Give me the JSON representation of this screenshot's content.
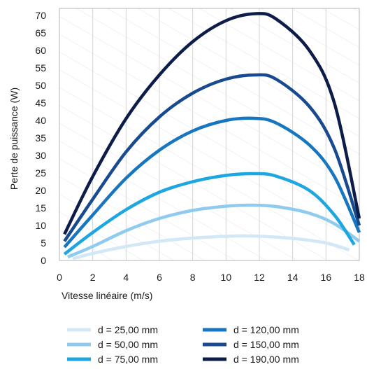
{
  "chart_data": {
    "type": "line",
    "xlabel": "Vitesse linéaire (m/s)",
    "ylabel": "Perte de puissance (W)",
    "xlim": [
      0,
      18
    ],
    "ylim": [
      0,
      72
    ],
    "x_ticks": [
      "0",
      "2",
      "4",
      "6",
      "8",
      "10",
      "12",
      "14",
      "16",
      "18"
    ],
    "y_ticks": [
      "0",
      "5",
      "10",
      "15",
      "20",
      "25",
      "30",
      "35",
      "40",
      "45",
      "50",
      "55",
      "60",
      "65",
      "70"
    ],
    "grid": true,
    "legend_position": "bottom",
    "series": [
      {
        "name": "d = 25,00 mm",
        "color": "#d3e8f7",
        "x": [
          0.8,
          2,
          4,
          6,
          8,
          10,
          11.5,
          14,
          16,
          17.4
        ],
        "y": [
          0.5,
          2.0,
          4.0,
          5.5,
          6.4,
          6.9,
          7.0,
          6.3,
          5.0,
          3.0
        ]
      },
      {
        "name": "d = 50,00 mm",
        "color": "#8ecbef",
        "x": [
          0.5,
          2,
          4,
          6,
          8,
          10,
          11.5,
          13,
          15,
          16.5,
          18
        ],
        "y": [
          1.0,
          4.0,
          8.5,
          12.0,
          14.3,
          15.5,
          15.8,
          15.4,
          13.5,
          10.5,
          5.5
        ]
      },
      {
        "name": "d = 75,00 mm",
        "color": "#1da6e0",
        "x": [
          0.3,
          2,
          4,
          6,
          8,
          10,
          11.7,
          13,
          15,
          16.5,
          17.7
        ],
        "y": [
          1.8,
          8.0,
          14.5,
          19.5,
          22.5,
          24.3,
          24.8,
          24.1,
          20.0,
          13.0,
          4.5
        ]
      },
      {
        "name": "d = 120,00 mm",
        "color": "#1676bf",
        "x": [
          0.3,
          2,
          4,
          6,
          8,
          10,
          11.7,
          13,
          15,
          16.5,
          18
        ],
        "y": [
          3.8,
          13.0,
          23.5,
          31.5,
          37.0,
          40.0,
          40.6,
          39.3,
          33.0,
          24.0,
          8.0
        ]
      },
      {
        "name": "d = 150,00 mm",
        "color": "#184a8f",
        "x": [
          0.3,
          2,
          4,
          6,
          8,
          10,
          11.8,
          13,
          15,
          16.5,
          18
        ],
        "y": [
          5.5,
          17.5,
          31.0,
          41.0,
          47.8,
          51.8,
          53.0,
          51.8,
          44.0,
          32.0,
          10.0
        ]
      },
      {
        "name": "d = 190,00 mm",
        "color": "#0d1d4a",
        "x": [
          0.3,
          2,
          4,
          6,
          8,
          10,
          11.8,
          13,
          15,
          16.5,
          18
        ],
        "y": [
          7.5,
          24.0,
          40.5,
          53.0,
          62.5,
          68.5,
          70.5,
          69.0,
          60.0,
          45.0,
          12.0
        ]
      }
    ]
  }
}
